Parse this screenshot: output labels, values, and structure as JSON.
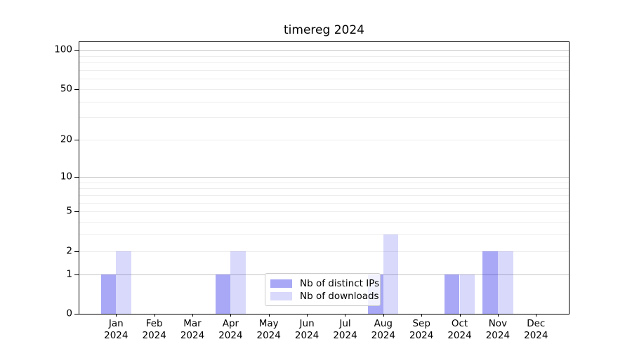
{
  "title": "timereg 2024",
  "chart_data": {
    "type": "bar",
    "title": "timereg 2024",
    "categories": [
      "Jan",
      "Feb",
      "Mar",
      "Apr",
      "May",
      "Jun",
      "Jul",
      "Aug",
      "Sep",
      "Oct",
      "Nov",
      "Dec"
    ],
    "year": "2024",
    "series": [
      {
        "key": "distinct-ips",
        "name": "Nb of distinct IPs",
        "color": "rgba(0,0,230,0.34)",
        "values": [
          1,
          0,
          0,
          1,
          0,
          0,
          0,
          1,
          0,
          1,
          2,
          0
        ]
      },
      {
        "key": "downloads",
        "name": "Nb of downloads",
        "color": "rgba(0,0,230,0.15)",
        "values": [
          2,
          0,
          0,
          2,
          0,
          0,
          0,
          3,
          0,
          1,
          2,
          0
        ]
      }
    ],
    "xlabel": "",
    "ylabel": "",
    "y_scale": "log1p",
    "ylim": [
      0,
      115
    ],
    "y_ticks": [
      0,
      1,
      2,
      5,
      10,
      20,
      50,
      100
    ],
    "y_major_gridlines": [
      1,
      10,
      100
    ],
    "y_minor_gridlines": [
      2,
      3,
      4,
      5,
      6,
      7,
      8,
      9,
      20,
      30,
      40,
      50,
      60,
      70,
      80,
      90
    ],
    "grid": true,
    "legend_position": "lower center"
  }
}
